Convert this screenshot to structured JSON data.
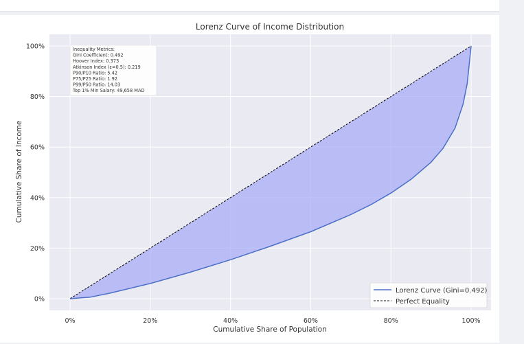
{
  "chart_data": {
    "type": "area",
    "title": "Lorenz Curve of Income Distribution",
    "xlabel": "Cumulative Share of Population",
    "ylabel": "Cumulative Share of Income",
    "xlim": [
      0,
      100
    ],
    "ylim": [
      0,
      100
    ],
    "x_ticks": [
      "0%",
      "20%",
      "40%",
      "60%",
      "80%",
      "100%"
    ],
    "y_ticks": [
      "0%",
      "20%",
      "40%",
      "60%",
      "80%",
      "100%"
    ],
    "grid": true,
    "legend_position": "bottom-right",
    "series": [
      {
        "name": "Lorenz Curve (Gini=0.492)",
        "style": "solid",
        "color": "#4c6fc7",
        "x": [
          0,
          5,
          10,
          20,
          30,
          40,
          50,
          60,
          70,
          75,
          80,
          85,
          90,
          93,
          96,
          98,
          99,
          100
        ],
        "y": [
          0,
          0.6,
          2.2,
          6.0,
          10.5,
          15.4,
          20.8,
          26.5,
          33.3,
          37.2,
          41.8,
          47.2,
          54.0,
          59.5,
          67.5,
          77.0,
          85.0,
          100
        ]
      },
      {
        "name": "Perfect Equality",
        "style": "dashed",
        "color": "#111111",
        "x": [
          0,
          100
        ],
        "y": [
          0,
          100
        ]
      }
    ],
    "fill_color": "#a9aef5",
    "annotation_lines": [
      "Inequality Metrics:",
      "Gini Coefficient: 0.492",
      "Hoover Index: 0.373",
      "Atkinson Index (ε=0.5): 0.219",
      "P90/P10 Ratio: 5.42",
      "P75/P25 Ratio: 1.92",
      "P99/P50 Ratio: 14.03",
      "Top 1% Min Salary: 49,658 MAD"
    ]
  }
}
